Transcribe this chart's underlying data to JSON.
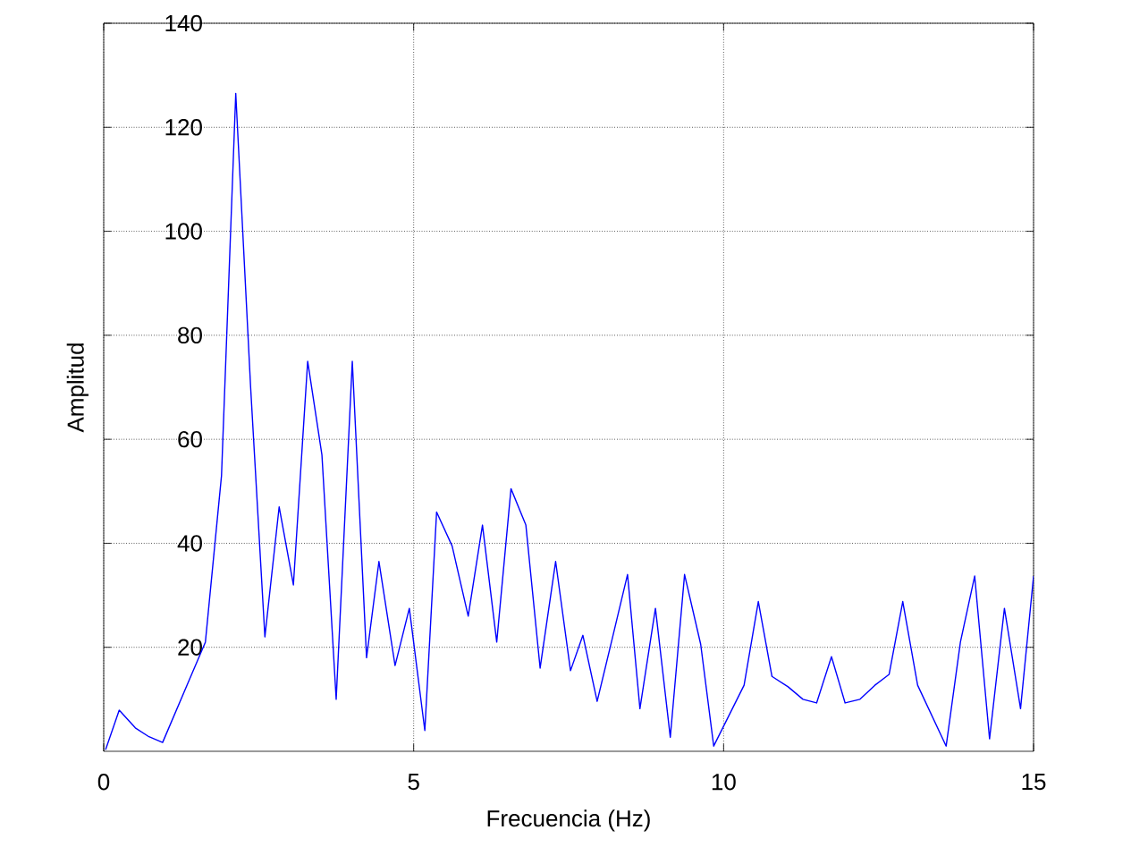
{
  "chart_data": {
    "type": "line",
    "xlabel": "Frecuencia (Hz)",
    "ylabel": "Amplitud",
    "xlim": [
      0,
      15
    ],
    "ylim": [
      0,
      140
    ],
    "xticks": [
      {
        "value": 0,
        "label": "0"
      },
      {
        "value": 5,
        "label": "5"
      },
      {
        "value": 10,
        "label": "10"
      },
      {
        "value": 15,
        "label": "15"
      }
    ],
    "yticks": [
      20,
      40,
      60,
      80,
      100,
      120,
      140
    ],
    "grid": true,
    "marker": "none",
    "line_style": "solid",
    "series": [
      {
        "color": "#0000ff",
        "x": [
          0.03,
          0.25,
          0.51,
          0.73,
          0.95,
          1.64,
          1.9,
          2.13,
          2.37,
          2.6,
          2.83,
          3.06,
          3.29,
          3.52,
          3.75,
          4.01,
          4.24,
          4.44,
          4.7,
          4.93,
          5.18,
          5.37,
          5.62,
          5.88,
          6.11,
          6.34,
          6.57,
          6.81,
          7.04,
          7.29,
          7.53,
          7.73,
          7.96,
          8.21,
          8.45,
          8.65,
          8.9,
          9.14,
          9.37,
          9.63,
          9.84,
          10.33,
          10.56,
          10.78,
          11.04,
          11.28,
          11.5,
          11.74,
          11.96,
          12.2,
          12.44,
          12.67,
          12.89,
          13.13,
          13.59,
          13.82,
          14.05,
          14.29,
          14.53,
          14.79,
          15.0
        ],
        "values": [
          0.3,
          7.9,
          4.5,
          2.8,
          1.7,
          21,
          53,
          126.5,
          70,
          22,
          47,
          32,
          75,
          57,
          10,
          75,
          18,
          36.5,
          16.5,
          27.5,
          4,
          46,
          39.5,
          26,
          43.5,
          21,
          50.5,
          43.5,
          16,
          36.5,
          15.5,
          22.3,
          9.6,
          22,
          34,
          8.2,
          27.5,
          2.7,
          34,
          20.6,
          1,
          12.7,
          28.8,
          14.4,
          12.4,
          10,
          9.3,
          18.2,
          9.3,
          10,
          12.7,
          14.8,
          28.8,
          12.7,
          1,
          21,
          33.7,
          2.4,
          27.5,
          8.2,
          33.7
        ]
      }
    ]
  }
}
